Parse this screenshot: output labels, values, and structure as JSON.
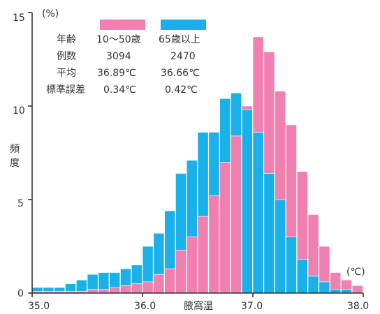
{
  "chart_data": {
    "type": "bar",
    "xlabel": "腋窩温",
    "ylabel": "頻度",
    "y_unit": "(%)",
    "x_unit": "(℃)",
    "xlim": [
      35.0,
      38.0
    ],
    "ylim": [
      0,
      15
    ],
    "bin_width": 0.1,
    "x_ticks": [
      "35.0",
      "36.0",
      "37.0",
      "38.0"
    ],
    "y_ticks": [
      "0",
      "5",
      "10",
      "15"
    ],
    "bin_starts": [
      35.0,
      35.1,
      35.2,
      35.3,
      35.4,
      35.5,
      35.6,
      35.7,
      35.8,
      35.9,
      36.0,
      36.1,
      36.2,
      36.3,
      36.4,
      36.5,
      36.6,
      36.7,
      36.8,
      36.9,
      37.0,
      37.1,
      37.2,
      37.3,
      37.4,
      37.5,
      37.6,
      37.7,
      37.8,
      37.9
    ],
    "series": [
      {
        "name": "10〜50歳",
        "color": "#f080b0",
        "values": [
          0.1,
          0.1,
          0.1,
          0.1,
          0.1,
          0.2,
          0.2,
          0.3,
          0.4,
          0.5,
          0.6,
          1.0,
          1.3,
          2.3,
          3.0,
          4.1,
          5.2,
          7.0,
          8.4,
          10.0,
          13.7,
          12.9,
          10.8,
          9.0,
          6.5,
          4.2,
          2.5,
          1.1,
          0.7,
          0.4
        ]
      },
      {
        "name": "65歳以上",
        "color": "#1ab0e8",
        "values": [
          0.3,
          0.3,
          0.3,
          0.5,
          0.7,
          1.0,
          1.1,
          1.1,
          1.3,
          1.5,
          2.5,
          3.2,
          4.4,
          6.4,
          7.1,
          8.6,
          8.6,
          10.4,
          10.7,
          9.8,
          8.6,
          6.4,
          5.0,
          3.0,
          1.8,
          0.9,
          0.6,
          0.2,
          0.2,
          0.0
        ]
      }
    ],
    "stats": {
      "rows": [
        {
          "label": "年齢",
          "s1": "10〜50歳",
          "s2": "65歳以上"
        },
        {
          "label": "例数",
          "s1": "3094",
          "s2": "2470"
        },
        {
          "label": "平均",
          "s1": "36.89℃",
          "s2": "36.66℃"
        },
        {
          "label": "標準誤差",
          "s1": "0.34℃",
          "s2": "0.42℃"
        }
      ]
    }
  }
}
